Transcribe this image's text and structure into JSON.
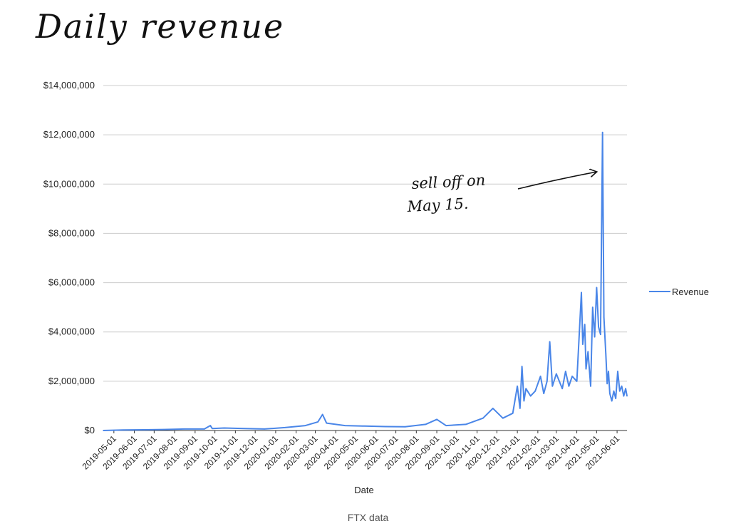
{
  "page": {
    "title": "Daily revenue",
    "caption": "FTX data"
  },
  "chart_data": {
    "type": "line",
    "xlabel": "Date",
    "ylabel": "",
    "ylim": [
      0,
      14000000
    ],
    "ytick_values": [
      0,
      2000000,
      4000000,
      6000000,
      8000000,
      10000000,
      12000000,
      14000000
    ],
    "ytick_labels": [
      "$0",
      "$2,000,000",
      "$4,000,000",
      "$6,000,000",
      "$8,000,000",
      "$10,000,000",
      "$12,000,000",
      "$14,000,000"
    ],
    "xlim": [
      "2019-04-15",
      "2021-06-16"
    ],
    "xtick_labels": [
      "2019-05-01",
      "2019-06-01",
      "2019-07-01",
      "2019-08-01",
      "2019-09-01",
      "2019-10-01",
      "2019-11-01",
      "2019-12-01",
      "2020-01-01",
      "2020-02-01",
      "2020-03-01",
      "2020-04-01",
      "2020-05-01",
      "2020-06-01",
      "2020-07-01",
      "2020-08-01",
      "2020-09-01",
      "2020-10-01",
      "2020-11-01",
      "2020-12-01",
      "2021-01-01",
      "2021-02-01",
      "2021-03-01",
      "2021-04-01",
      "2021-05-01",
      "2021-06-01"
    ],
    "grid": true,
    "legend_position": "right",
    "series": [
      {
        "name": "Revenue",
        "color": "#4a86e8",
        "x": [
          "2019-04-15",
          "2019-05-15",
          "2019-06-15",
          "2019-07-15",
          "2019-08-15",
          "2019-09-15",
          "2019-09-24",
          "2019-09-27",
          "2019-10-15",
          "2019-11-15",
          "2019-12-15",
          "2020-01-15",
          "2020-02-15",
          "2020-03-05",
          "2020-03-12",
          "2020-03-18",
          "2020-04-15",
          "2020-05-15",
          "2020-06-15",
          "2020-07-15",
          "2020-08-15",
          "2020-09-01",
          "2020-09-15",
          "2020-10-15",
          "2020-11-10",
          "2020-11-25",
          "2020-12-10",
          "2020-12-25",
          "2021-01-01",
          "2021-01-05",
          "2021-01-08",
          "2021-01-11",
          "2021-01-14",
          "2021-01-21",
          "2021-01-28",
          "2021-02-05",
          "2021-02-10",
          "2021-02-15",
          "2021-02-19",
          "2021-02-23",
          "2021-03-01",
          "2021-03-10",
          "2021-03-15",
          "2021-03-20",
          "2021-03-25",
          "2021-04-01",
          "2021-04-08",
          "2021-04-10",
          "2021-04-13",
          "2021-04-15",
          "2021-04-18",
          "2021-04-22",
          "2021-04-25",
          "2021-04-28",
          "2021-05-01",
          "2021-05-04",
          "2021-05-07",
          "2021-05-10",
          "2021-05-12",
          "2021-05-15",
          "2021-05-17",
          "2021-05-19",
          "2021-05-21",
          "2021-05-24",
          "2021-05-27",
          "2021-05-30",
          "2021-06-02",
          "2021-06-05",
          "2021-06-08",
          "2021-06-11",
          "2021-06-14",
          "2021-06-16"
        ],
        "values": [
          0,
          20000,
          30000,
          40000,
          60000,
          60000,
          200000,
          80000,
          100000,
          80000,
          60000,
          120000,
          200000,
          350000,
          650000,
          300000,
          200000,
          180000,
          160000,
          150000,
          250000,
          450000,
          200000,
          250000,
          500000,
          900000,
          500000,
          700000,
          1800000,
          900000,
          2600000,
          1200000,
          1700000,
          1400000,
          1600000,
          2200000,
          1500000,
          2000000,
          3600000,
          1800000,
          2300000,
          1700000,
          2400000,
          1800000,
          2200000,
          2000000,
          5600000,
          3500000,
          4300000,
          2500000,
          3200000,
          1800000,
          5000000,
          3800000,
          5800000,
          4200000,
          3900000,
          12100000,
          4600000,
          3100000,
          1900000,
          2400000,
          1500000,
          1200000,
          1600000,
          1300000,
          2400000,
          1600000,
          1800000,
          1400000,
          1700000,
          1400000
        ]
      }
    ],
    "annotations": [
      {
        "lines": [
          "sell off on",
          "May 15."
        ],
        "target_x": "2021-05-10",
        "target_y": 10500000
      }
    ]
  }
}
